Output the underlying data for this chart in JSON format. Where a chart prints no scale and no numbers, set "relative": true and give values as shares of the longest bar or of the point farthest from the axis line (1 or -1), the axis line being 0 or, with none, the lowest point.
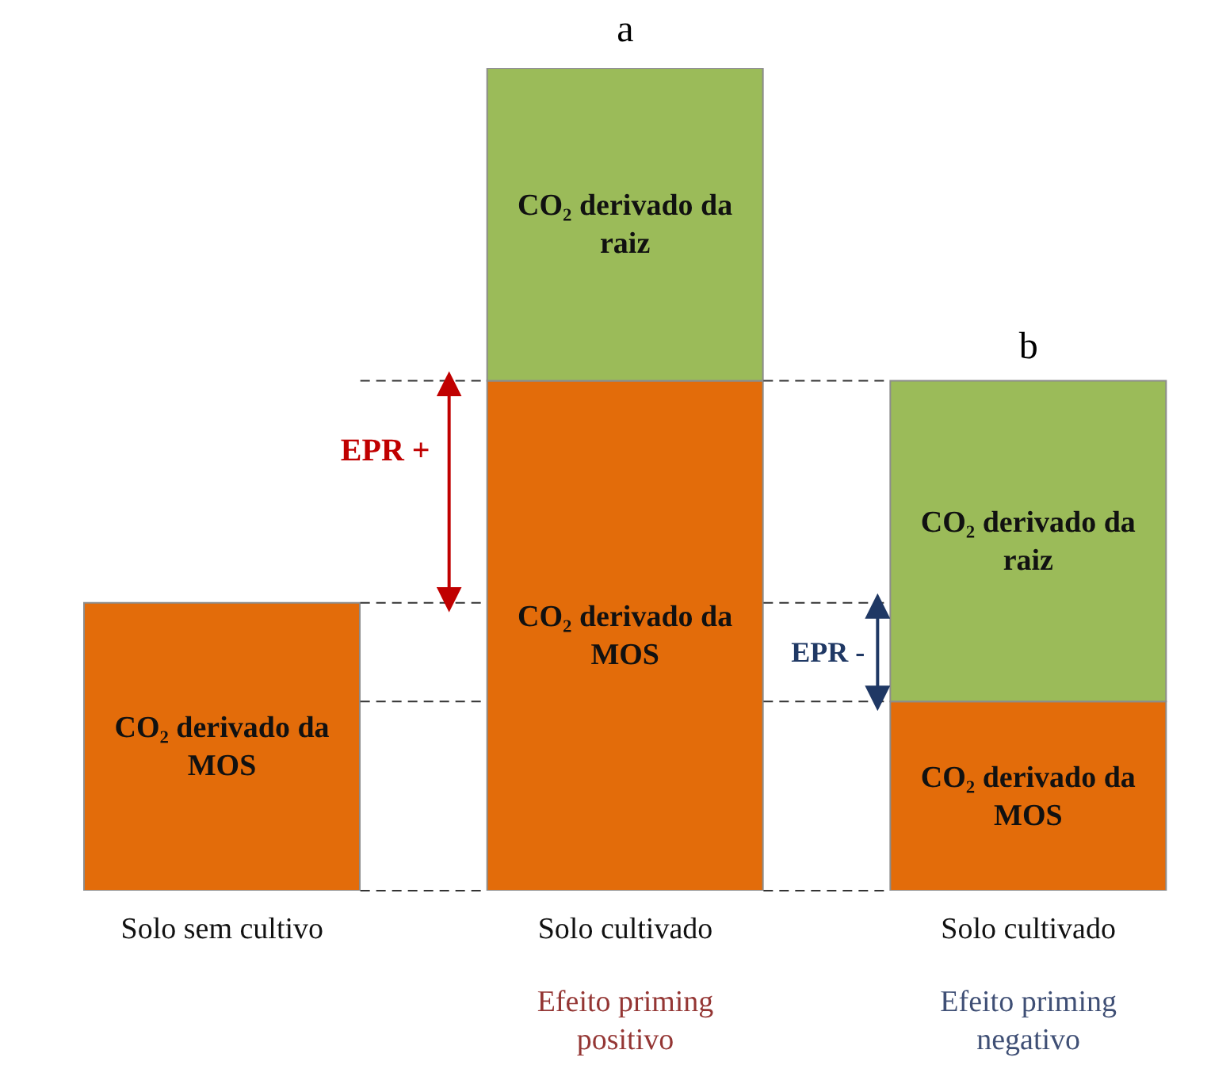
{
  "chart_data": {
    "type": "bar",
    "stacked": true,
    "relative": true,
    "categories": [
      "Solo sem cultivo",
      "Solo cultivado",
      "Solo cultivado"
    ],
    "series": [
      {
        "name": "CO₂ derivado da MOS",
        "color": "#e36c0a",
        "values": [
          0.35,
          0.62,
          0.23
        ]
      },
      {
        "name": "CO₂ derivado da raiz",
        "color": "#9bbb59",
        "values": [
          0,
          0.38,
          0.39
        ]
      }
    ],
    "ref_lines": [
      {
        "axis": "y",
        "value": 0,
        "color": "#333333",
        "line_style": "dashed"
      },
      {
        "axis": "y",
        "value": 0.35,
        "color": "#333333",
        "line_style": "dashed"
      },
      {
        "axis": "y",
        "value": 0.62,
        "color": "#333333",
        "line_style": "dashed"
      },
      {
        "axis": "y",
        "value": 0.23,
        "color": "#333333",
        "line_style": "dashed"
      }
    ],
    "annotations": [
      "a",
      "b",
      "EPR +",
      "EPR -",
      "Efeito priming positivo",
      "Efeito priming negativo"
    ]
  }
}
